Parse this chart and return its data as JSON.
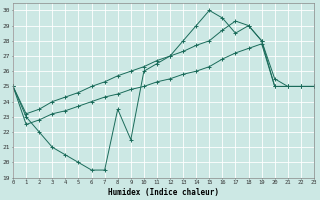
{
  "xlabel": "Humidex (Indice chaleur)",
  "background_color": "#cce8e4",
  "grid_color": "#ffffff",
  "line_color": "#1a6b5a",
  "xlim": [
    0,
    23
  ],
  "ylim": [
    19,
    30.5
  ],
  "yticks": [
    19,
    20,
    21,
    22,
    23,
    24,
    25,
    26,
    27,
    28,
    29,
    30
  ],
  "xticks": [
    0,
    1,
    2,
    3,
    4,
    5,
    6,
    7,
    8,
    9,
    10,
    11,
    12,
    13,
    14,
    15,
    16,
    17,
    18,
    19,
    20,
    21,
    22,
    23
  ],
  "series1": [
    25.0,
    23.0,
    22.0,
    21.0,
    20.5,
    20.0,
    19.5,
    19.5,
    23.5,
    21.5,
    26.0,
    26.5,
    27.0,
    28.0,
    29.0,
    30.0,
    29.5,
    28.5,
    29.0,
    28.0,
    25.0,
    25.0,
    25.0,
    25.0
  ],
  "series2": [
    25.0,
    23.2,
    23.5,
    24.0,
    24.3,
    24.6,
    25.0,
    25.3,
    25.7,
    26.0,
    26.3,
    26.7,
    27.0,
    27.3,
    27.7,
    28.0,
    28.7,
    29.3,
    29.0,
    28.0,
    25.5,
    25.0,
    25.0,
    25.0
  ],
  "series3": [
    25.0,
    22.5,
    22.8,
    23.2,
    23.4,
    23.7,
    24.0,
    24.3,
    24.5,
    24.8,
    25.0,
    25.3,
    25.5,
    25.8,
    26.0,
    26.3,
    26.8,
    27.2,
    27.5,
    27.8,
    25.0,
    25.0,
    25.0,
    25.0
  ]
}
